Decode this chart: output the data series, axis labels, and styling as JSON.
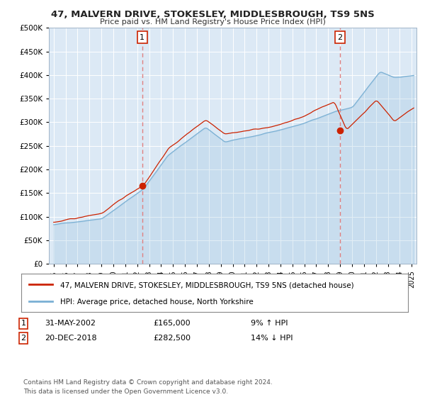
{
  "title": "47, MALVERN DRIVE, STOKESLEY, MIDDLESBROUGH, TS9 5NS",
  "subtitle": "Price paid vs. HM Land Registry's House Price Index (HPI)",
  "background_color": "#ffffff",
  "plot_bg_color": "#dce9f5",
  "red_line_color": "#cc2200",
  "blue_line_color": "#7ab0d4",
  "marker_color": "#cc2200",
  "dashed_line_color": "#e08080",
  "legend_entry1": "47, MALVERN DRIVE, STOKESLEY, MIDDLESBROUGH, TS9 5NS (detached house)",
  "legend_entry2": "HPI: Average price, detached house, North Yorkshire",
  "sale1_date": "31-MAY-2002",
  "sale1_price": 165000,
  "sale1_year": 2002.42,
  "sale2_date": "20-DEC-2018",
  "sale2_price": 282500,
  "sale2_year": 2018.97,
  "sale1_pct": "9% ↑ HPI",
  "sale2_pct": "14% ↓ HPI",
  "footer": "Contains HM Land Registry data © Crown copyright and database right 2024.\nThis data is licensed under the Open Government Licence v3.0.",
  "ylim": [
    0,
    500000
  ],
  "yticks": [
    0,
    50000,
    100000,
    150000,
    200000,
    250000,
    300000,
    350000,
    400000,
    450000,
    500000
  ],
  "xlim_start": 1994.6,
  "xlim_end": 2025.4
}
